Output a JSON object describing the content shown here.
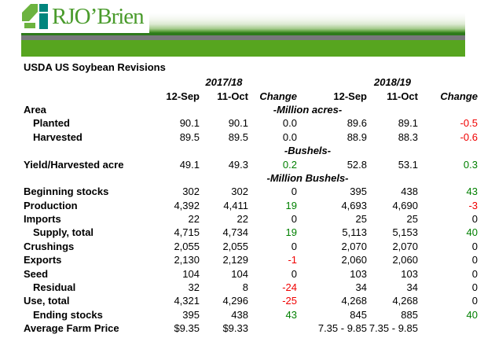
{
  "header": {
    "logo_text": "RJO’Brien"
  },
  "title": "USDA US Soybean Revisions",
  "table": {
    "seasons": [
      "2017/18",
      "2018/19"
    ],
    "column_headers": [
      "12-Sep",
      "11-Oct",
      "Change",
      "12-Sep",
      "11-Oct",
      "Change"
    ],
    "rows": [
      {
        "label": "Area",
        "indent": false,
        "unit": "-Million acres-"
      },
      {
        "label": "Planted",
        "indent": true,
        "values": [
          "90.1",
          "90.1",
          "0.0",
          "89.6",
          "89.1",
          "-0.5"
        ],
        "tones": [
          "k",
          "k",
          "k",
          "k",
          "k",
          "r"
        ]
      },
      {
        "label": "Harvested",
        "indent": true,
        "values": [
          "89.5",
          "89.5",
          "0.0",
          "88.9",
          "88.3",
          "-0.6"
        ],
        "tones": [
          "k",
          "k",
          "k",
          "k",
          "k",
          "r"
        ]
      },
      {
        "label": "",
        "indent": false,
        "unit": "-Bushels-"
      },
      {
        "label": "Yield/Harvested acre",
        "indent": false,
        "values": [
          "49.1",
          "49.3",
          "0.2",
          "52.8",
          "53.1",
          "0.3"
        ],
        "tones": [
          "k",
          "k",
          "g",
          "k",
          "k",
          "g"
        ]
      },
      {
        "label": "",
        "indent": false,
        "unit": "-Million Bushels-"
      },
      {
        "label": "Beginning stocks",
        "indent": false,
        "values": [
          "302",
          "302",
          "0",
          "395",
          "438",
          "43"
        ],
        "tones": [
          "k",
          "k",
          "k",
          "k",
          "k",
          "g"
        ]
      },
      {
        "label": "Production",
        "indent": false,
        "values": [
          "4,392",
          "4,411",
          "19",
          "4,693",
          "4,690",
          "-3"
        ],
        "tones": [
          "k",
          "k",
          "g",
          "k",
          "k",
          "r"
        ]
      },
      {
        "label": "Imports",
        "indent": false,
        "values": [
          "22",
          "22",
          "0",
          "25",
          "25",
          "0"
        ],
        "tones": [
          "k",
          "k",
          "k",
          "k",
          "k",
          "k"
        ]
      },
      {
        "label": "Supply, total",
        "indent": true,
        "values": [
          "4,715",
          "4,734",
          "19",
          "5,113",
          "5,153",
          "40"
        ],
        "tones": [
          "k",
          "k",
          "g",
          "k",
          "k",
          "g"
        ]
      },
      {
        "label": "Crushings",
        "indent": false,
        "values": [
          "2,055",
          "2,055",
          "0",
          "2,070",
          "2,070",
          "0"
        ],
        "tones": [
          "k",
          "k",
          "k",
          "k",
          "k",
          "k"
        ]
      },
      {
        "label": "Exports",
        "indent": false,
        "values": [
          "2,130",
          "2,129",
          "-1",
          "2,060",
          "2,060",
          "0"
        ],
        "tones": [
          "k",
          "k",
          "r",
          "k",
          "k",
          "k"
        ]
      },
      {
        "label": "Seed",
        "indent": false,
        "values": [
          "104",
          "104",
          "0",
          "103",
          "103",
          "0"
        ],
        "tones": [
          "k",
          "k",
          "k",
          "k",
          "k",
          "k"
        ]
      },
      {
        "label": "Residual",
        "indent": true,
        "values": [
          "32",
          "8",
          "-24",
          "34",
          "34",
          "0"
        ],
        "tones": [
          "k",
          "k",
          "r",
          "k",
          "k",
          "k"
        ]
      },
      {
        "label": "Use, total",
        "indent": false,
        "values": [
          "4,321",
          "4,296",
          "-25",
          "4,268",
          "4,268",
          "0"
        ],
        "tones": [
          "k",
          "k",
          "r",
          "k",
          "k",
          "k"
        ]
      },
      {
        "label": "Ending stocks",
        "indent": true,
        "values": [
          "395",
          "438",
          "43",
          "845",
          "885",
          "40"
        ],
        "tones": [
          "k",
          "k",
          "g",
          "k",
          "k",
          "g"
        ]
      },
      {
        "label": "Average Farm Price",
        "indent": false,
        "values": [
          "$9.35",
          "$9.33",
          "",
          "7.35 - 9.85",
          "7.35 - 9.85",
          ""
        ],
        "tones": [
          "k",
          "k",
          "k",
          "k",
          "k",
          "k"
        ]
      }
    ]
  },
  "colors": {
    "logo_green": "#4a9b2c",
    "logo_light_green": "#6cb33f",
    "logo_teal": "#00857d",
    "bar_green": "#57a51f",
    "bar_gray": "#77787b",
    "bar_dark_green": "#2d7a1a",
    "positive_change": "#008000",
    "negative_change": "#f00000"
  }
}
